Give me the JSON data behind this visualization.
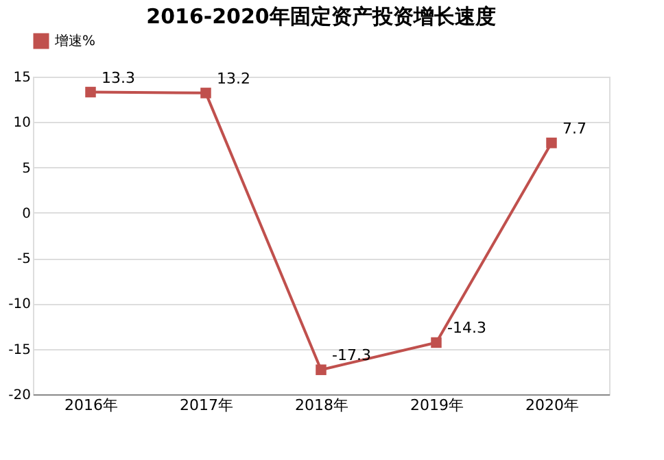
{
  "chart_data": {
    "type": "line",
    "title": "2016-2020年固定资产投资增长速度",
    "categories": [
      "2016年",
      "2017年",
      "2018年",
      "2019年",
      "2020年"
    ],
    "series": [
      {
        "name": "增速%",
        "color": "#c0504d",
        "values": [
          13.3,
          13.2,
          -17.3,
          -14.3,
          7.7
        ]
      }
    ],
    "ylim": [
      -20,
      15
    ],
    "yticks": [
      -20,
      -15,
      -10,
      -5,
      0,
      5,
      10,
      15
    ],
    "grid": "y",
    "legend": "top",
    "marker": "square",
    "line_style": "solid",
    "data_labels": true
  }
}
